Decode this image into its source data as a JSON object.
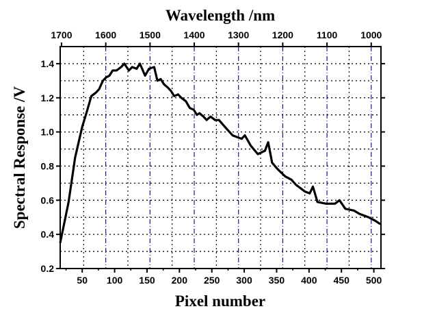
{
  "chart_data": {
    "type": "line",
    "title": "",
    "xlabel": "Pixel number",
    "ylabel": "Spectral Response /V",
    "x2label": "Wavelength /nm",
    "xlim": [
      16,
      511
    ],
    "ylim": [
      0.2,
      1.5
    ],
    "x2lim": [
      1703,
      978
    ],
    "xticks": [
      50,
      100,
      150,
      200,
      250,
      300,
      350,
      400,
      450,
      500
    ],
    "yticks": [
      "0.2",
      "0.4",
      "0.6",
      "0.8",
      "1.0",
      "1.2",
      "1.4"
    ],
    "x2ticks": [
      1700,
      1600,
      1500,
      1400,
      1300,
      1200,
      1100,
      1000
    ],
    "grid": true,
    "series": [
      {
        "name": "Spectral Response",
        "color": "#000000",
        "x": [
          16,
          29,
          39,
          50,
          58,
          64,
          71,
          76,
          82,
          87,
          92,
          97,
          103,
          110,
          115,
          122,
          127,
          134,
          139,
          147,
          153,
          161,
          166,
          171,
          176,
          182,
          187,
          192,
          198,
          203,
          210,
          216,
          222,
          227,
          231,
          237,
          242,
          248,
          255,
          261,
          270,
          282,
          296,
          301,
          310,
          321,
          332,
          337,
          343,
          352,
          363,
          373,
          380,
          394,
          401,
          406,
          413,
          426,
          440,
          447,
          456,
          469,
          478,
          492,
          502,
          510
        ],
        "y": [
          0.35,
          0.59,
          0.85,
          1.03,
          1.13,
          1.21,
          1.23,
          1.25,
          1.3,
          1.32,
          1.33,
          1.36,
          1.36,
          1.38,
          1.4,
          1.36,
          1.38,
          1.37,
          1.4,
          1.33,
          1.37,
          1.38,
          1.3,
          1.31,
          1.28,
          1.26,
          1.24,
          1.21,
          1.22,
          1.2,
          1.18,
          1.14,
          1.13,
          1.1,
          1.11,
          1.09,
          1.07,
          1.09,
          1.07,
          1.07,
          1.03,
          0.98,
          0.96,
          0.98,
          0.92,
          0.87,
          0.89,
          0.94,
          0.82,
          0.78,
          0.74,
          0.72,
          0.69,
          0.65,
          0.64,
          0.68,
          0.59,
          0.58,
          0.58,
          0.6,
          0.55,
          0.54,
          0.52,
          0.5,
          0.48,
          0.46
        ]
      }
    ]
  }
}
